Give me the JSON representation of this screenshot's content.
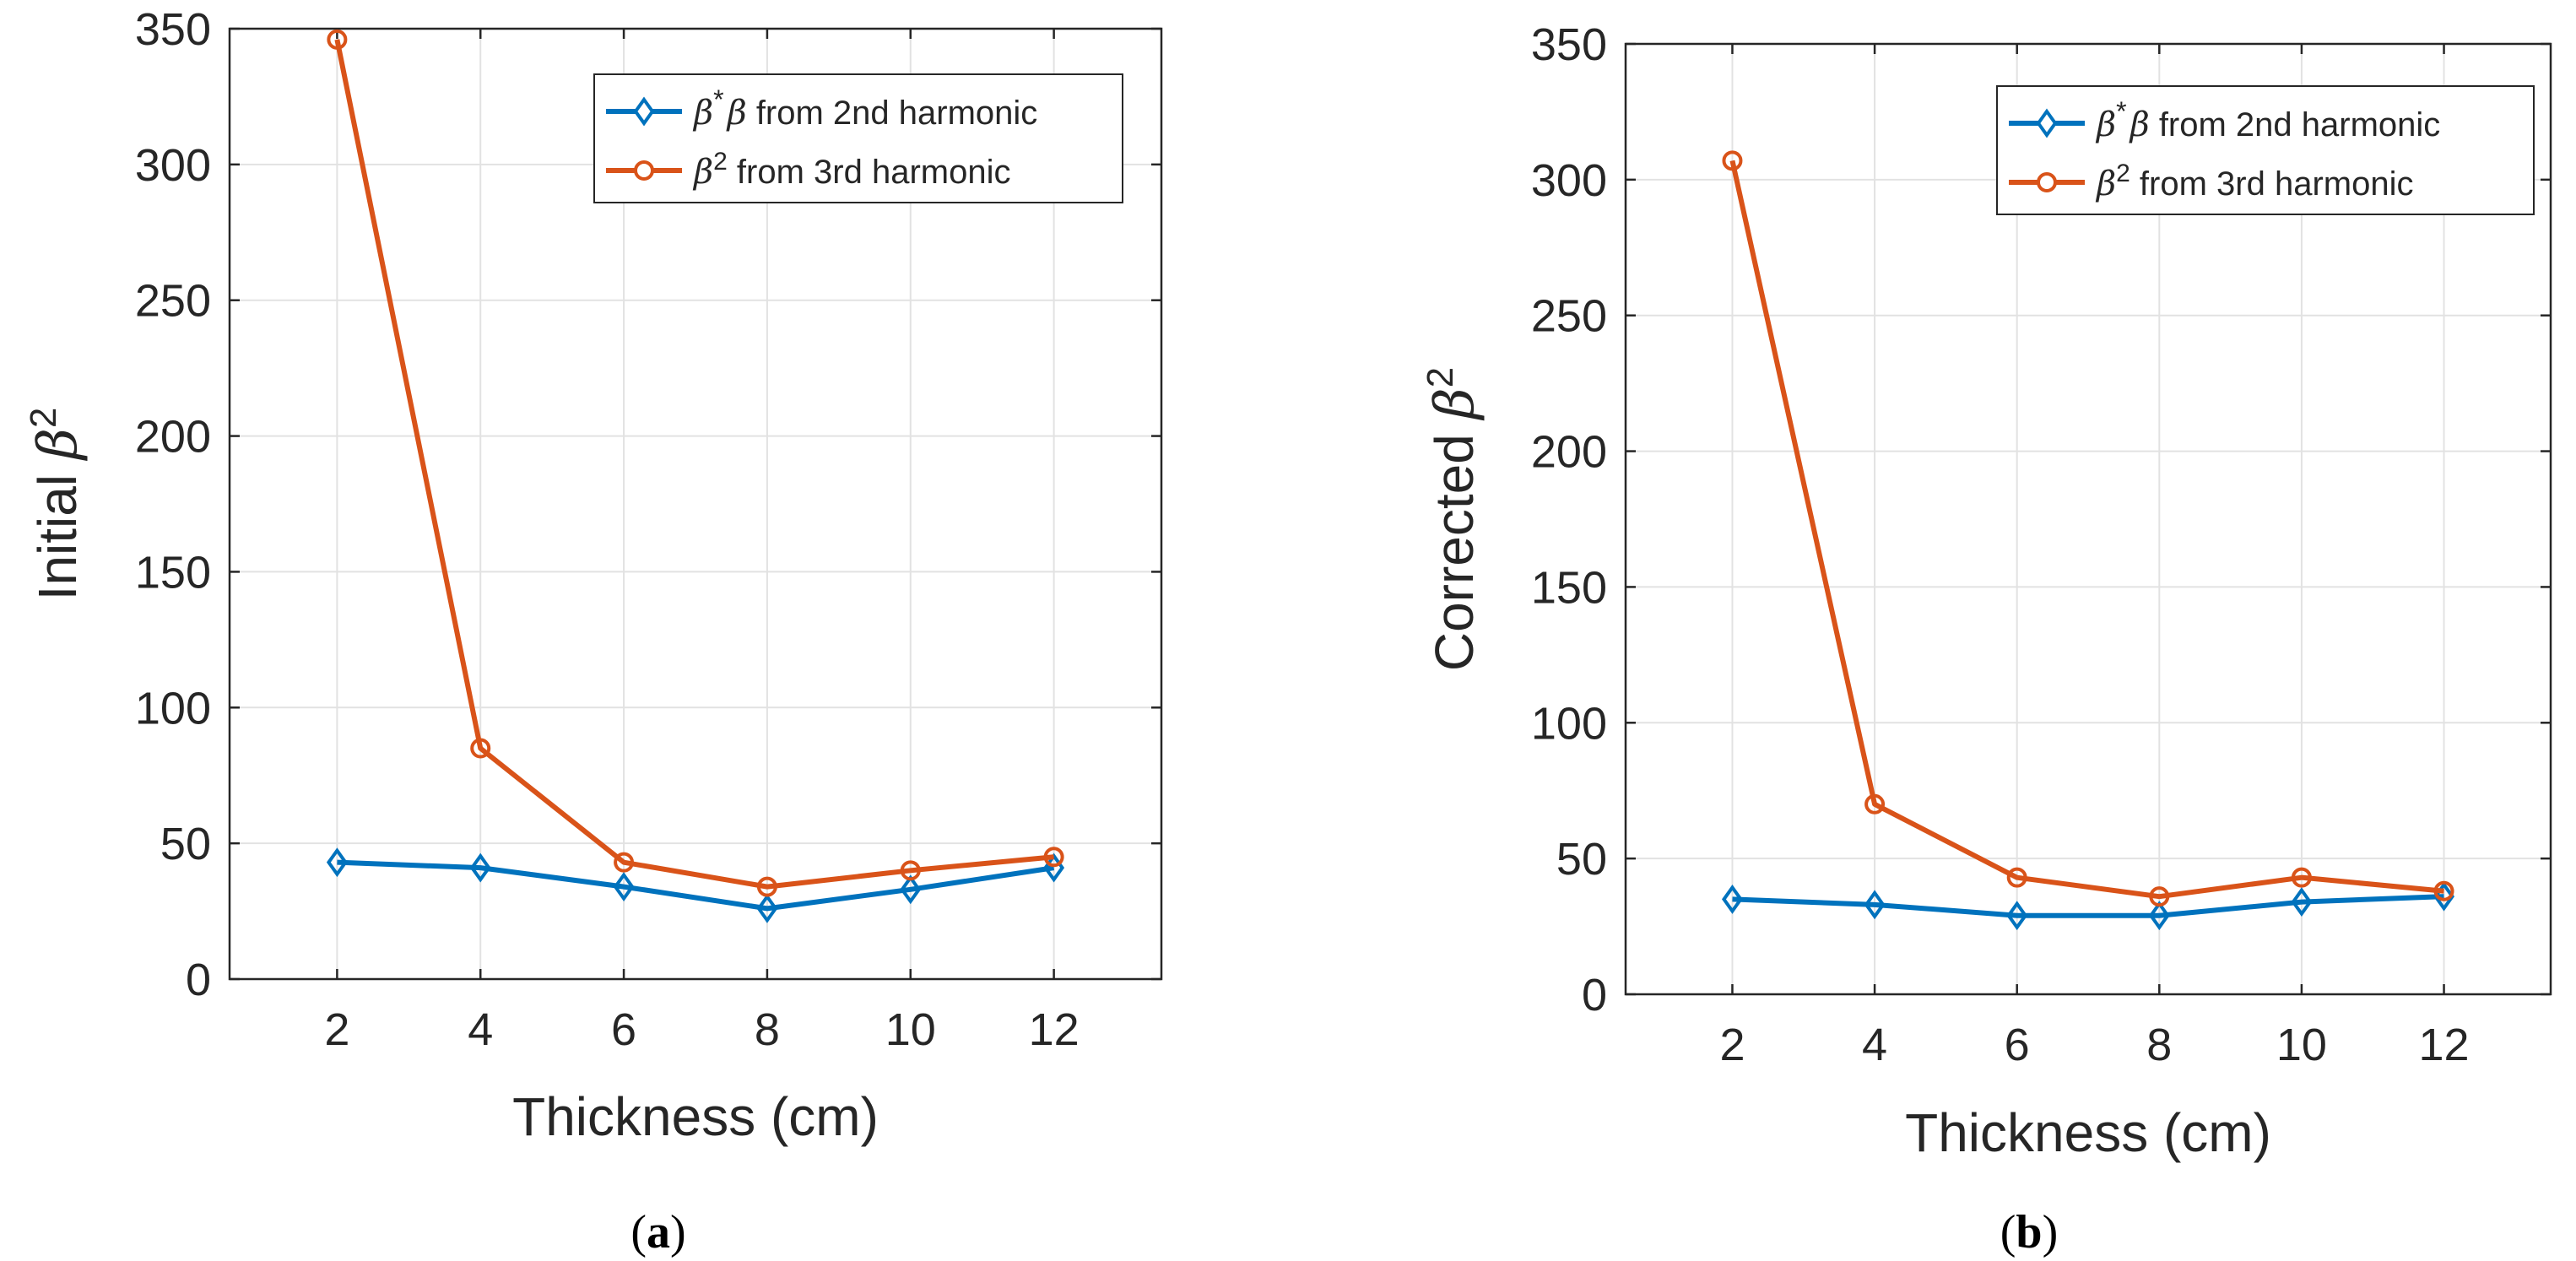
{
  "chart_data": [
    {
      "type": "line",
      "panel": "a",
      "caption": "a",
      "xlabel": "Thickness (cm)",
      "ylabel_prefix": "Initial ",
      "ylabel_symbol": "β",
      "ylabel_exponent": "2",
      "x": [
        2,
        4,
        6,
        8,
        10,
        12
      ],
      "xlim": [
        0.5,
        13.5
      ],
      "ylim": [
        0,
        350
      ],
      "xticks": [
        2,
        4,
        6,
        8,
        10,
        12
      ],
      "yticks": [
        0,
        50,
        100,
        150,
        200,
        250,
        300,
        350
      ],
      "grid": true,
      "legend_position": "top-right",
      "series": [
        {
          "name": "β*β from 2nd harmonic",
          "legend_symbol": "β",
          "legend_mid": "*",
          "legend_symbol2": "β",
          "legend_rest": " from 2nd harmonic",
          "marker": "diamond",
          "color": "#0072BD",
          "values": [
            43,
            41,
            34,
            26,
            33,
            41
          ]
        },
        {
          "name": "β² from 3rd harmonic",
          "legend_symbol": "β",
          "legend_sup": "2",
          "legend_rest": " from 3rd harmonic",
          "marker": "circle",
          "color": "#D95319",
          "values": [
            346,
            85,
            43,
            34,
            40,
            45
          ]
        }
      ]
    },
    {
      "type": "line",
      "panel": "b",
      "caption": "b",
      "xlabel": "Thickness (cm)",
      "ylabel_prefix": "Corrected ",
      "ylabel_symbol": "β",
      "ylabel_exponent": "2",
      "x": [
        2,
        4,
        6,
        8,
        10,
        12
      ],
      "xlim": [
        0.5,
        13.5
      ],
      "ylim": [
        0,
        350
      ],
      "xticks": [
        2,
        4,
        6,
        8,
        10,
        12
      ],
      "yticks": [
        0,
        50,
        100,
        150,
        200,
        250,
        300,
        350
      ],
      "grid": true,
      "legend_position": "top-right",
      "series": [
        {
          "name": "β*β from 2nd harmonic",
          "legend_symbol": "β",
          "legend_mid": "*",
          "legend_symbol2": "β",
          "legend_rest": " from 2nd harmonic",
          "marker": "diamond",
          "color": "#0072BD",
          "values": [
            35,
            33,
            29,
            29,
            34,
            36
          ]
        },
        {
          "name": "β² from 3rd harmonic",
          "legend_symbol": "β",
          "legend_sup": "2",
          "legend_rest": " from 3rd harmonic",
          "marker": "circle",
          "color": "#D95319",
          "values": [
            307,
            70,
            43,
            36,
            43,
            38
          ]
        }
      ]
    }
  ]
}
